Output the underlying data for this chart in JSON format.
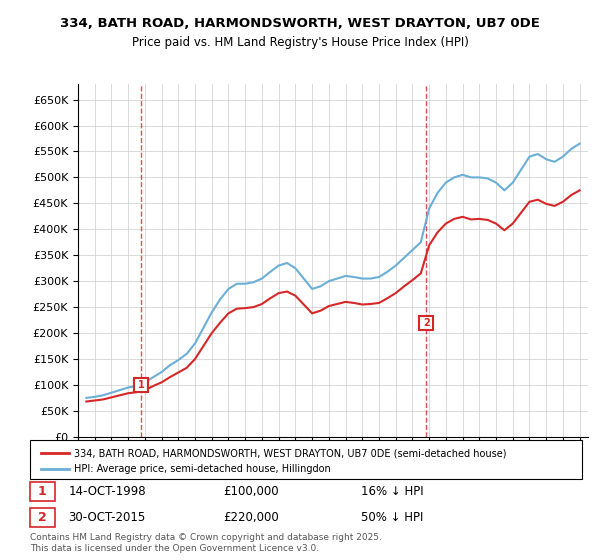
{
  "title": "334, BATH ROAD, HARMONDSWORTH, WEST DRAYTON, UB7 0DE",
  "subtitle": "Price paid vs. HM Land Registry's House Price Index (HPI)",
  "ylabel": "",
  "xlabel": "",
  "ylim": [
    0,
    680000
  ],
  "yticks": [
    0,
    50000,
    100000,
    150000,
    200000,
    250000,
    300000,
    350000,
    400000,
    450000,
    500000,
    550000,
    600000,
    650000
  ],
  "ytick_labels": [
    "£0",
    "£50K",
    "£100K",
    "£150K",
    "£200K",
    "£250K",
    "£300K",
    "£350K",
    "£400K",
    "£450K",
    "£500K",
    "£550K",
    "£600K",
    "£650K"
  ],
  "xlim_start": 1995.0,
  "xlim_end": 2025.5,
  "transaction1": {
    "year": 1998.79,
    "price": 100000,
    "label": "1",
    "date": "14-OCT-1998",
    "pct": "16% ↓ HPI"
  },
  "transaction2": {
    "year": 2015.83,
    "price": 220000,
    "label": "2",
    "date": "30-OCT-2015",
    "pct": "50% ↓ HPI"
  },
  "hpi_color": "#6baed6",
  "price_color": "#d62728",
  "vline_color": "#d62728",
  "background_color": "#ffffff",
  "grid_color": "#cccccc",
  "legend_label_price": "334, BATH ROAD, HARMONDSWORTH, WEST DRAYTON, UB7 0DE (semi-detached house)",
  "legend_label_hpi": "HPI: Average price, semi-detached house, Hillingdon",
  "footnote": "Contains HM Land Registry data © Crown copyright and database right 2025.\nThis data is licensed under the Open Government Licence v3.0.",
  "hpi_data": {
    "years": [
      1995.5,
      1996.0,
      1996.5,
      1997.0,
      1997.5,
      1998.0,
      1998.5,
      1999.0,
      1999.5,
      2000.0,
      2000.5,
      2001.0,
      2001.5,
      2002.0,
      2002.5,
      2003.0,
      2003.5,
      2004.0,
      2004.5,
      2005.0,
      2005.5,
      2006.0,
      2006.5,
      2007.0,
      2007.5,
      2008.0,
      2008.5,
      2009.0,
      2009.5,
      2010.0,
      2010.5,
      2011.0,
      2011.5,
      2012.0,
      2012.5,
      2013.0,
      2013.5,
      2014.0,
      2014.5,
      2015.0,
      2015.5,
      2016.0,
      2016.5,
      2017.0,
      2017.5,
      2018.0,
      2018.5,
      2019.0,
      2019.5,
      2020.0,
      2020.5,
      2021.0,
      2021.5,
      2022.0,
      2022.5,
      2023.0,
      2023.5,
      2024.0,
      2024.5,
      2025.0
    ],
    "values": [
      75000,
      77000,
      80000,
      85000,
      90000,
      95000,
      98000,
      105000,
      115000,
      125000,
      138000,
      148000,
      160000,
      180000,
      210000,
      240000,
      265000,
      285000,
      295000,
      295000,
      298000,
      305000,
      318000,
      330000,
      335000,
      325000,
      305000,
      285000,
      290000,
      300000,
      305000,
      310000,
      308000,
      305000,
      305000,
      308000,
      318000,
      330000,
      345000,
      360000,
      375000,
      440000,
      470000,
      490000,
      500000,
      505000,
      500000,
      500000,
      498000,
      490000,
      475000,
      490000,
      515000,
      540000,
      545000,
      535000,
      530000,
      540000,
      555000,
      565000
    ]
  },
  "price_data": {
    "years": [
      1995.5,
      1996.0,
      1996.5,
      1997.0,
      1997.5,
      1998.0,
      1998.5,
      1999.0,
      1999.5,
      2000.0,
      2000.5,
      2001.0,
      2001.5,
      2002.0,
      2002.5,
      2003.0,
      2003.5,
      2004.0,
      2004.5,
      2005.0,
      2005.5,
      2006.0,
      2006.5,
      2007.0,
      2007.5,
      2008.0,
      2008.5,
      2009.0,
      2009.5,
      2010.0,
      2010.5,
      2011.0,
      2011.5,
      2012.0,
      2012.5,
      2013.0,
      2013.5,
      2014.0,
      2014.5,
      2015.0,
      2015.5,
      2016.0,
      2016.5,
      2017.0,
      2017.5,
      2018.0,
      2018.5,
      2019.0,
      2019.5,
      2020.0,
      2020.5,
      2021.0,
      2021.5,
      2022.0,
      2022.5,
      2023.0,
      2023.5,
      2024.0,
      2024.5,
      2025.0
    ],
    "values": [
      68000,
      70000,
      72000,
      76000,
      80000,
      84000,
      86000,
      90000,
      98000,
      105000,
      115000,
      124000,
      133000,
      150000,
      175000,
      200000,
      220000,
      238000,
      247000,
      248000,
      250000,
      256000,
      267000,
      277000,
      280000,
      272000,
      255000,
      238000,
      243000,
      252000,
      256000,
      260000,
      258000,
      255000,
      256000,
      258000,
      267000,
      277000,
      290000,
      302000,
      315000,
      369000,
      394000,
      411000,
      420000,
      424000,
      419000,
      420000,
      418000,
      411000,
      398000,
      411000,
      432000,
      453000,
      457000,
      449000,
      445000,
      453000,
      466000,
      475000
    ]
  }
}
